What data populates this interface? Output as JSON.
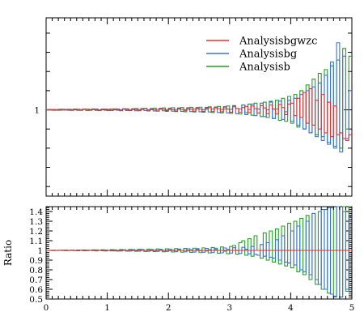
{
  "chart_data": {
    "type": "line",
    "style": "step-histogram",
    "x_edges": [
      0.0,
      0.05,
      0.1,
      0.15,
      0.2,
      0.25,
      0.3,
      0.35,
      0.4,
      0.45,
      0.5,
      0.55,
      0.6,
      0.65,
      0.7,
      0.75,
      0.8,
      0.85,
      0.9,
      0.95,
      1.0,
      1.05,
      1.1,
      1.15,
      1.2,
      1.25,
      1.3,
      1.35,
      1.4,
      1.45,
      1.5,
      1.55,
      1.6,
      1.65,
      1.7,
      1.75,
      1.8,
      1.85,
      1.9,
      1.95,
      2.0,
      2.05,
      2.1,
      2.15,
      2.2,
      2.25,
      2.3,
      2.35,
      2.4,
      2.45,
      2.5,
      2.55,
      2.6,
      2.65,
      2.7,
      2.75,
      2.8,
      2.85,
      2.9,
      2.95,
      3.0,
      3.05,
      3.1,
      3.15,
      3.2,
      3.25,
      3.3,
      3.35,
      3.4,
      3.45,
      3.5,
      3.55,
      3.6,
      3.65,
      3.7,
      3.75,
      3.8,
      3.85,
      3.9,
      3.95,
      4.0,
      4.05,
      4.1,
      4.15,
      4.2,
      4.25,
      4.3,
      4.35,
      4.4,
      4.45,
      4.5,
      4.55,
      4.6,
      4.65,
      4.7,
      4.75,
      4.8,
      4.85,
      4.9,
      4.95,
      5.0
    ],
    "xlim": [
      0,
      5
    ],
    "x_ticks": [
      "0",
      "1",
      "2",
      "3",
      "4",
      "5"
    ],
    "legend": {
      "placement": "top-right"
    },
    "colors": {
      "red": "#e8302a",
      "blue": "#3a72e0",
      "green": "#22a022"
    },
    "main_panel": {
      "ylabel": "",
      "y_ticks": [
        "1"
      ],
      "series": [
        {
          "name": "Analysisbgwzc",
          "color": "#e8302a",
          "values": [
            1.0,
            1.002,
            0.998,
            1.001,
            1.003,
            0.999,
            1.002,
            1.0,
            0.997,
            1.003,
            1.001,
            0.999,
            1.004,
            1.002,
            0.998,
            1.003,
            1.0,
            0.996,
            1.004,
            1.001,
            0.998,
            1.004,
            1.0,
            1.005,
            0.996,
            1.003,
            1.001,
            0.996,
            1.005,
            1.002,
            0.997,
            1.004,
            1.006,
            0.995,
            1.003,
            1.001,
            0.994,
            1.007,
            1.003,
            0.996,
            1.006,
            1.001,
            0.994,
            1.008,
            1.002,
            0.995,
            1.009,
            1.003,
            0.993,
            1.01,
            1.004,
            0.992,
            1.009,
            1.011,
            0.991,
            1.013,
            1.006,
            0.99,
            1.014,
            1.004,
            0.988,
            1.016,
            1.007,
            0.987,
            1.012,
            1.018,
            0.985,
            1.02,
            1.006,
            0.983,
            1.022,
            1.01,
            0.98,
            1.025,
            1.004,
            0.978,
            1.028,
            1.012,
            0.975,
            1.03,
            1.035,
            0.97,
            1.06,
            0.96,
            1.09,
            0.93,
            1.11,
            0.92,
            1.05,
            0.9,
            1.08,
            0.88,
            1.04,
            0.86,
            1.02,
            0.87,
            0.88,
            0.85,
            0.84,
            0.87
          ]
        },
        {
          "name": "Analysisbg",
          "color": "#3a72e0",
          "values": [
            0.999,
            1.001,
            1.0,
            0.998,
            1.002,
            1.001,
            0.999,
            1.003,
            0.998,
            1.0,
            1.003,
            0.997,
            1.002,
            1.004,
            0.998,
            1.001,
            1.005,
            0.997,
            1.0,
            1.004,
            0.996,
            1.002,
            1.005,
            0.998,
            1.0,
            1.006,
            0.996,
            1.001,
            1.006,
            0.995,
            1.002,
            1.007,
            0.996,
            1.001,
            1.007,
            0.994,
            1.002,
            1.008,
            0.995,
            1.0,
            1.009,
            0.993,
            1.002,
            1.01,
            0.992,
            1.001,
            1.011,
            0.991,
            1.003,
            1.012,
            0.99,
            1.001,
            1.013,
            0.989,
            1.004,
            1.015,
            0.986,
            1.002,
            1.017,
            0.984,
            1.003,
            1.02,
            0.98,
            1.005,
            1.025,
            0.975,
            1.002,
            1.03,
            0.97,
            1.004,
            1.035,
            0.965,
            1.0,
            1.04,
            0.955,
            1.005,
            1.045,
            0.95,
            0.99,
            1.05,
            0.94,
            1.06,
            0.92,
            1.08,
            0.9,
            1.1,
            0.88,
            1.12,
            0.86,
            1.14,
            0.84,
            1.18,
            0.82,
            1.25,
            0.8,
            1.35,
            0.78,
            1.28,
            0.85,
            1.1
          ]
        },
        {
          "name": "Analysisb",
          "color": "#22a022",
          "values": [
            1.001,
            0.999,
            1.002,
            1.0,
            0.998,
            1.003,
            1.001,
            0.998,
            1.002,
            1.004,
            0.997,
            1.001,
            1.003,
            0.996,
            1.002,
            1.005,
            0.997,
            1.0,
            1.004,
            0.998,
            1.003,
            0.996,
            1.005,
            1.001,
            0.995,
            1.004,
            1.006,
            0.996,
            1.001,
            1.007,
            0.995,
            1.002,
            1.008,
            0.994,
            1.001,
            1.009,
            0.993,
            1.003,
            1.01,
            0.992,
            1.002,
            1.011,
            0.991,
            1.004,
            1.012,
            0.99,
            1.002,
            1.013,
            0.989,
            1.005,
            1.014,
            0.988,
            1.003,
            1.016,
            0.986,
            1.006,
            1.018,
            0.984,
            1.004,
            1.02,
            0.982,
            1.022,
            1.007,
            0.978,
            1.026,
            0.985,
            1.03,
            0.972,
            1.035,
            1.005,
            0.965,
            1.04,
            0.96,
            1.045,
            0.955,
            1.05,
            0.945,
            1.06,
            0.94,
            1.07,
            0.93,
            1.08,
            0.91,
            1.1,
            0.9,
            1.13,
            0.88,
            1.16,
            0.87,
            1.19,
            0.86,
            1.21,
            0.83,
            1.23,
            0.81,
            1.26,
            0.8,
            1.32,
            0.9,
            1.28
          ]
        }
      ]
    },
    "ratio_panel": {
      "ylabel": "Ratio",
      "ylim": [
        0.5,
        1.45
      ],
      "y_ticks": [
        "0.5",
        "0.6",
        "0.7",
        "0.8",
        "0.9",
        "1",
        "1.1",
        "1.2",
        "1.3",
        "1.4"
      ],
      "series": [
        {
          "name": "Analysisbgwzc",
          "color": "#e8302a",
          "values": [
            1.0,
            1.0,
            1.0,
            1.0,
            1.0,
            1.0,
            1.0,
            1.0,
            1.0,
            1.0,
            1.0,
            1.0,
            1.0,
            1.0,
            1.0,
            1.0,
            1.0,
            1.0,
            1.0,
            1.0,
            1.0,
            1.0,
            1.0,
            1.0,
            1.0,
            1.0,
            1.0,
            1.0,
            1.0,
            1.0,
            1.0,
            1.0,
            1.0,
            1.0,
            1.0,
            1.0,
            1.0,
            1.0,
            1.0,
            1.0,
            1.0,
            1.0,
            1.0,
            1.0,
            1.0,
            1.0,
            1.0,
            1.0,
            1.0,
            1.0,
            1.0,
            1.0,
            1.0,
            1.0,
            1.0,
            1.0,
            1.0,
            1.0,
            1.0,
            1.0,
            1.0,
            1.0,
            1.0,
            1.0,
            1.0,
            1.0,
            1.0,
            1.0,
            1.0,
            1.0,
            1.0,
            1.0,
            1.0,
            1.0,
            1.0,
            1.0,
            1.0,
            1.0,
            1.0,
            1.0,
            1.0,
            1.0,
            1.0,
            1.0,
            1.0,
            1.0,
            1.0,
            1.0,
            1.0,
            1.0,
            1.0,
            1.0,
            1.0,
            1.0,
            1.0,
            1.0,
            1.0,
            1.0,
            1.0,
            1.0
          ]
        },
        {
          "name": "Analysisbg",
          "color": "#3a72e0",
          "values": [
            0.999,
            1.001,
            0.998,
            1.0,
            1.002,
            0.999,
            1.003,
            0.998,
            1.001,
            0.997,
            1.004,
            1.0,
            0.996,
            1.003,
            1.002,
            0.997,
            1.005,
            1.0,
            0.996,
            1.004,
            0.998,
            0.995,
            1.006,
            1.001,
            0.994,
            1.007,
            0.999,
            0.993,
            1.008,
            1.002,
            0.992,
            1.009,
            1.0,
            0.991,
            1.01,
            1.003,
            0.99,
            1.011,
            0.998,
            0.989,
            1.013,
            1.004,
            0.987,
            1.014,
            1.0,
            0.985,
            1.016,
            1.006,
            0.983,
            1.018,
            0.997,
            0.981,
            1.02,
            1.007,
            0.978,
            1.022,
            1.0,
            0.975,
            1.025,
            1.01,
            0.972,
            1.028,
            0.998,
            0.968,
            1.032,
            1.012,
            0.965,
            1.04,
            0.96,
            0.95,
            1.06,
            0.94,
            1.08,
            0.93,
            0.92,
            1.11,
            0.9,
            1.15,
            0.88,
            0.87,
            1.2,
            0.85,
            1.25,
            0.8,
            0.78,
            1.3,
            0.75,
            1.38,
            0.7,
            0.65,
            1.42,
            0.6,
            1.44,
            0.55,
            0.52,
            1.45,
            0.52,
            1.4,
            0.58,
            1.35
          ]
        },
        {
          "name": "Analysisb",
          "color": "#22a022",
          "values": [
            1.001,
            0.999,
            1.002,
            0.998,
            1.0,
            1.003,
            0.997,
            1.001,
            1.004,
            0.998,
            0.996,
            1.003,
            1.005,
            0.997,
            1.0,
            1.006,
            0.995,
            1.002,
            1.007,
            0.994,
            1.001,
            1.008,
            0.995,
            0.993,
            1.009,
            1.002,
            0.992,
            1.01,
            0.998,
            0.991,
            1.012,
            1.003,
            0.989,
            1.013,
            0.997,
            0.988,
            1.015,
            1.004,
            0.986,
            1.016,
            0.996,
            0.984,
            1.018,
            1.006,
            0.982,
            1.02,
            0.995,
            0.98,
            1.023,
            1.008,
            0.977,
            1.026,
            0.994,
            0.974,
            1.03,
            1.01,
            0.97,
            1.035,
            0.992,
            0.965,
            1.04,
            1.05,
            0.96,
            1.08,
            1.1,
            0.95,
            1.12,
            0.94,
            1.15,
            1.0,
            0.92,
            1.18,
            0.9,
            1.2,
            0.88,
            1.22,
            0.86,
            1.25,
            0.84,
            1.28,
            0.82,
            1.3,
            0.78,
            1.33,
            0.75,
            1.36,
            0.7,
            1.38,
            0.65,
            1.4,
            0.6,
            1.42,
            0.56,
            1.44,
            0.53,
            1.45,
            0.52,
            1.45,
            0.6,
            1.45
          ]
        }
      ]
    }
  }
}
